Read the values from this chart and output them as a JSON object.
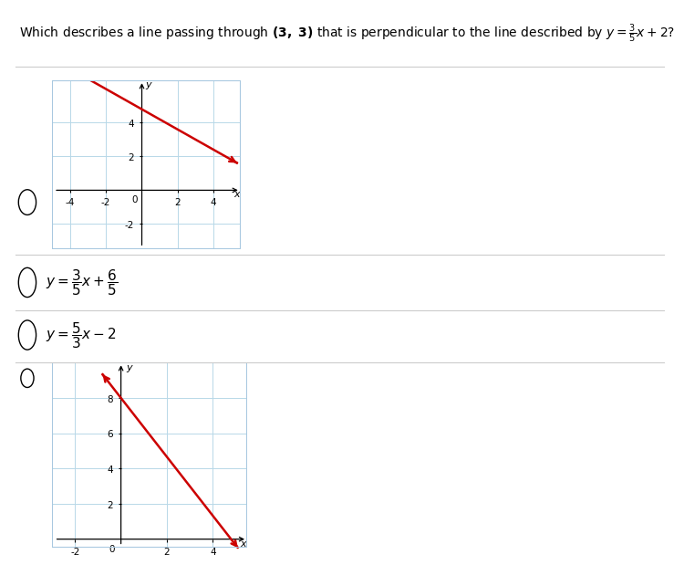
{
  "bg_color": "#ffffff",
  "grid_color": "#b8d8e8",
  "separator_color": "#cccccc",
  "question": "Which describes a line passing through $\\mathbf{(3,\\ 3)}$ that is perpendicular to the line described by $y = \\dfrac{3}{5}x + 2$?",
  "option1_text": "$y = \\dfrac{3}{5}x + \\dfrac{6}{5}$",
  "option2_text": "$y = \\dfrac{5}{3}x - 2$",
  "graph1": {
    "xlim": [
      -5,
      5.5
    ],
    "ylim": [
      -3.5,
      6.5
    ],
    "xticks": [
      -4,
      -2,
      2,
      4
    ],
    "yticks": [
      -2,
      2,
      4
    ],
    "slope": -0.6,
    "intercept": 4.8,
    "x_start": -3.8,
    "x_end": 5.3,
    "line_color": "#cc0000"
  },
  "graph2": {
    "xlim": [
      -3,
      5.5
    ],
    "ylim": [
      -0.5,
      10
    ],
    "xticks": [
      -2,
      2,
      4
    ],
    "yticks": [
      2,
      4,
      6,
      8
    ],
    "slope": -1.6667,
    "intercept": 8.0,
    "x_start": -0.8,
    "x_end": 5.1,
    "line_color": "#cc0000"
  }
}
